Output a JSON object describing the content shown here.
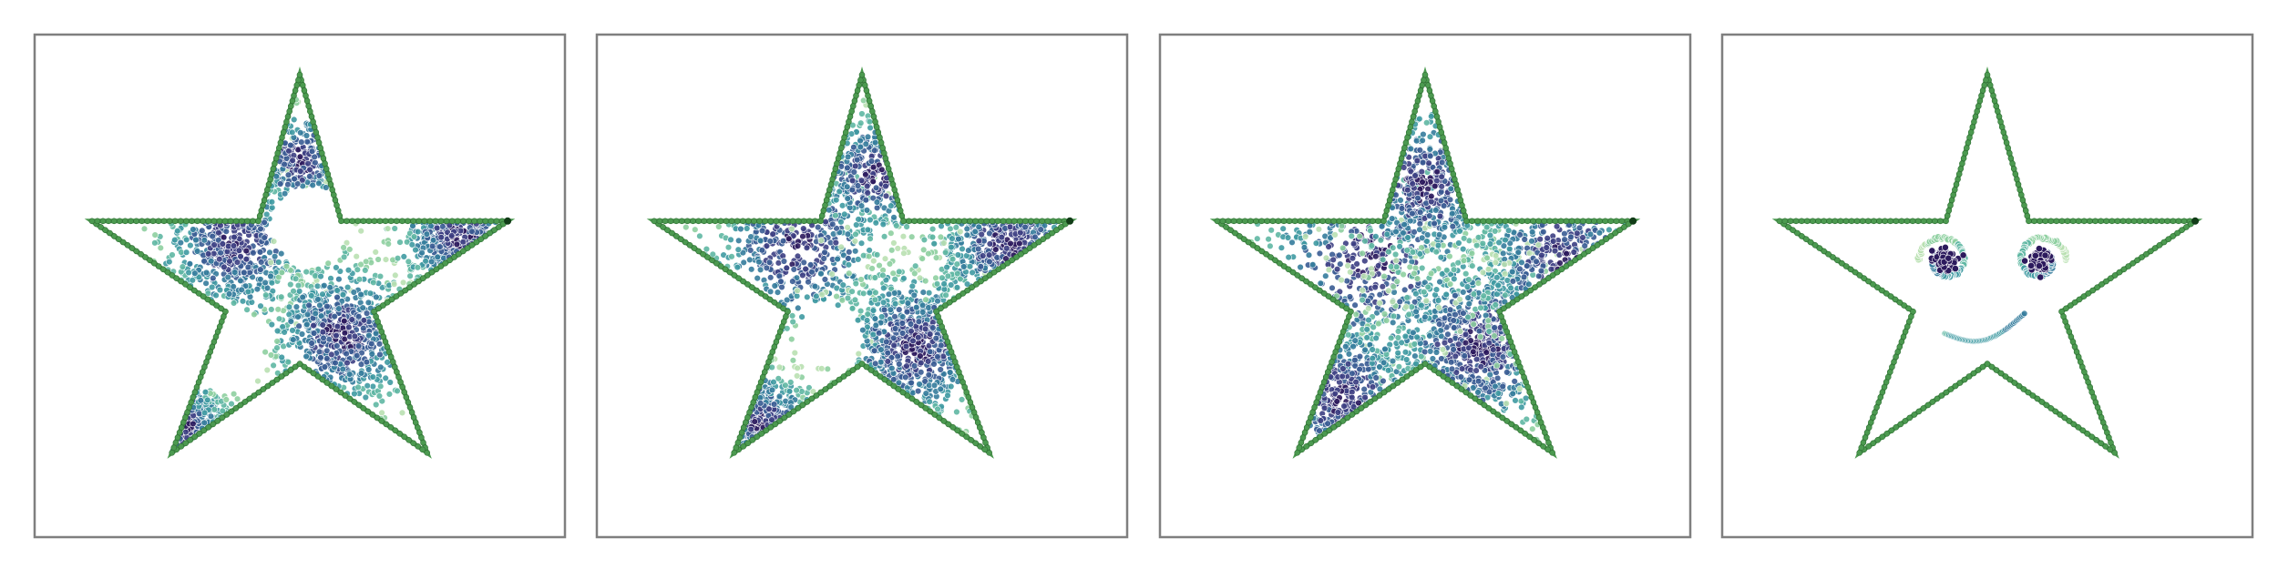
{
  "figure": {
    "panel_count": 4,
    "outline_color": "#4c9a50",
    "outline_dark": "#2f6e34",
    "dot_colormap": [
      "#b9e0b1",
      "#8ecfa0",
      "#5fb7a3",
      "#3f9aa2",
      "#357c9c",
      "#3a5c93",
      "#3d3f83",
      "#2c1a5d"
    ],
    "panels": [
      {
        "name": "panel-1",
        "style": "clusters",
        "clusters": [
          {
            "u": 0.38,
            "v": 0.42,
            "spread": 0.07,
            "count": 500
          },
          {
            "u": 0.58,
            "v": 0.6,
            "spread": 0.07,
            "count": 650
          },
          {
            "u": 0.8,
            "v": 0.4,
            "spread": 0.06,
            "count": 320
          },
          {
            "u": 0.28,
            "v": 0.78,
            "spread": 0.045,
            "count": 260
          },
          {
            "u": 0.5,
            "v": 0.25,
            "spread": 0.05,
            "count": 180
          }
        ],
        "holes": [
          {
            "u": 0.52,
            "v": 0.38,
            "r": 0.075
          },
          {
            "u": 0.35,
            "v": 0.62,
            "r": 0.085
          },
          {
            "u": 0.15,
            "v": 0.4,
            "r": 0.04
          }
        ]
      },
      {
        "name": "panel-2",
        "style": "clusters",
        "clusters": [
          {
            "u": 0.38,
            "v": 0.42,
            "spread": 0.085,
            "count": 420
          },
          {
            "u": 0.6,
            "v": 0.62,
            "spread": 0.075,
            "count": 600
          },
          {
            "u": 0.78,
            "v": 0.42,
            "spread": 0.075,
            "count": 320
          },
          {
            "u": 0.31,
            "v": 0.77,
            "spread": 0.05,
            "count": 240
          },
          {
            "u": 0.52,
            "v": 0.28,
            "spread": 0.06,
            "count": 260
          }
        ],
        "holes": [
          {
            "u": 0.44,
            "v": 0.6,
            "r": 0.06
          },
          {
            "u": 0.16,
            "v": 0.42,
            "r": 0.035
          }
        ]
      },
      {
        "name": "panel-3",
        "style": "clusters",
        "clusters": [
          {
            "u": 0.4,
            "v": 0.45,
            "spread": 0.11,
            "count": 420
          },
          {
            "u": 0.6,
            "v": 0.62,
            "spread": 0.09,
            "count": 650
          },
          {
            "u": 0.76,
            "v": 0.45,
            "spread": 0.09,
            "count": 300
          },
          {
            "u": 0.34,
            "v": 0.72,
            "spread": 0.08,
            "count": 320
          },
          {
            "u": 0.5,
            "v": 0.3,
            "spread": 0.08,
            "count": 360
          }
        ],
        "holes": []
      },
      {
        "name": "panel-4",
        "style": "smiley"
      }
    ]
  }
}
